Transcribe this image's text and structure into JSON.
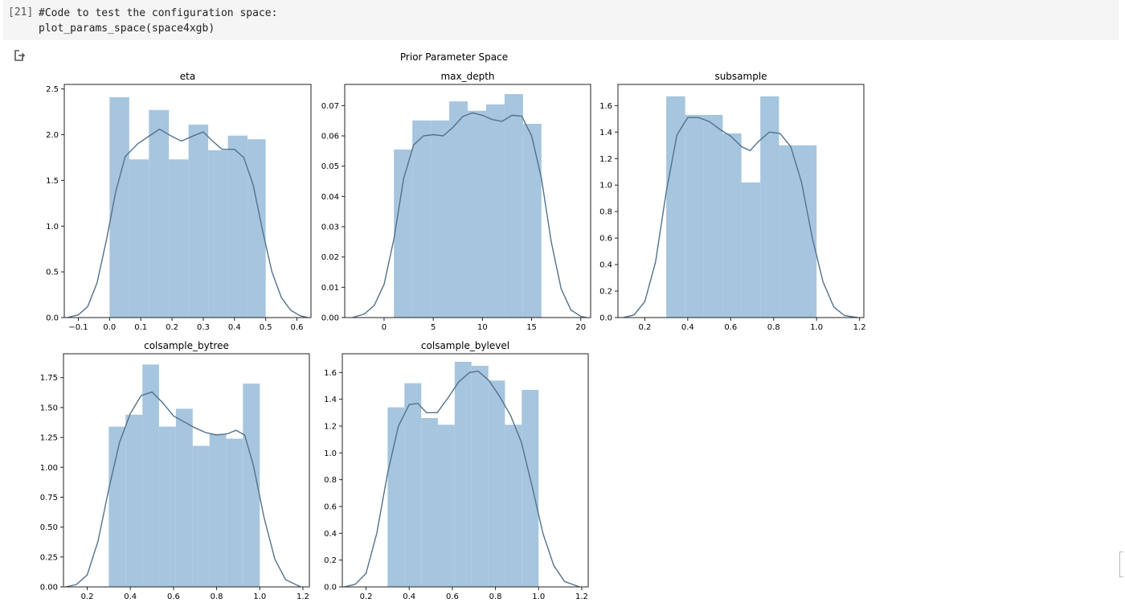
{
  "cell": {
    "execution_count": "[21]",
    "code_lines": [
      "#Code to test the configuration space:",
      "plot_params_space(space4xgb)"
    ]
  },
  "output": {
    "icon": "output-redirect-icon",
    "suptitle": "Prior Parameter Space"
  },
  "colors": {
    "bar": "#a6c5df",
    "kde": "#52728c",
    "axis": "#222222"
  },
  "chart_data": [
    {
      "type": "bar",
      "title": "eta",
      "xlim": [
        -0.145,
        0.645
      ],
      "ylim": [
        0,
        2.55
      ],
      "xticks": [
        -0.1,
        0,
        0.1,
        0.2,
        0.3,
        0.4,
        0.5,
        0.6
      ],
      "xtick_labels": [
        "−0.1",
        "0.0",
        "0.1",
        "0.2",
        "0.3",
        "0.4",
        "0.5",
        "0.6"
      ],
      "yticks": [
        0,
        0.5,
        1,
        1.5,
        2,
        2.5
      ],
      "ytick_labels": [
        "0.0",
        "0.5",
        "1.0",
        "1.5",
        "2.0",
        "2.5"
      ],
      "bins": [
        {
          "x0": 0.0,
          "x1": 0.063,
          "y": 2.41
        },
        {
          "x0": 0.063,
          "x1": 0.126,
          "y": 1.73
        },
        {
          "x0": 0.126,
          "x1": 0.19,
          "y": 2.27
        },
        {
          "x0": 0.19,
          "x1": 0.253,
          "y": 1.73
        },
        {
          "x0": 0.253,
          "x1": 0.316,
          "y": 2.11
        },
        {
          "x0": 0.316,
          "x1": 0.379,
          "y": 1.83
        },
        {
          "x0": 0.379,
          "x1": 0.442,
          "y": 1.99
        },
        {
          "x0": 0.442,
          "x1": 0.5,
          "y": 1.95
        }
      ],
      "kde": [
        [
          -0.135,
          0.0
        ],
        [
          -0.1,
          0.03
        ],
        [
          -0.07,
          0.12
        ],
        [
          -0.04,
          0.38
        ],
        [
          -0.01,
          0.85
        ],
        [
          0.02,
          1.38
        ],
        [
          0.05,
          1.76
        ],
        [
          0.09,
          1.9
        ],
        [
          0.12,
          1.97
        ],
        [
          0.16,
          2.06
        ],
        [
          0.2,
          1.98
        ],
        [
          0.23,
          1.93
        ],
        [
          0.27,
          1.99
        ],
        [
          0.3,
          2.03
        ],
        [
          0.33,
          1.93
        ],
        [
          0.36,
          1.84
        ],
        [
          0.4,
          1.84
        ],
        [
          0.43,
          1.75
        ],
        [
          0.46,
          1.45
        ],
        [
          0.49,
          0.95
        ],
        [
          0.52,
          0.5
        ],
        [
          0.55,
          0.22
        ],
        [
          0.58,
          0.08
        ],
        [
          0.61,
          0.02
        ],
        [
          0.635,
          0.0
        ]
      ]
    },
    {
      "type": "bar",
      "title": "max_depth",
      "xlim": [
        -4.0,
        21.0
      ],
      "ylim": [
        0,
        0.077
      ],
      "xticks": [
        0,
        5,
        10,
        15,
        20
      ],
      "xtick_labels": [
        "0",
        "5",
        "10",
        "15",
        "20"
      ],
      "yticks": [
        0,
        0.01,
        0.02,
        0.03,
        0.04,
        0.05,
        0.06,
        0.07
      ],
      "ytick_labels": [
        "0.00",
        "0.01",
        "0.02",
        "0.03",
        "0.04",
        "0.05",
        "0.06",
        "0.07"
      ],
      "bins": [
        {
          "x0": 1.0,
          "x1": 2.875,
          "y": 0.0555
        },
        {
          "x0": 2.875,
          "x1": 4.75,
          "y": 0.0651
        },
        {
          "x0": 4.75,
          "x1": 6.625,
          "y": 0.0651
        },
        {
          "x0": 6.625,
          "x1": 8.5,
          "y": 0.0714
        },
        {
          "x0": 8.5,
          "x1": 10.375,
          "y": 0.0683
        },
        {
          "x0": 10.375,
          "x1": 12.25,
          "y": 0.0704
        },
        {
          "x0": 12.25,
          "x1": 14.125,
          "y": 0.0738
        },
        {
          "x0": 14.125,
          "x1": 16.0,
          "y": 0.064
        }
      ],
      "kde": [
        [
          -3.2,
          0.0
        ],
        [
          -2.0,
          0.0012
        ],
        [
          -1.0,
          0.004
        ],
        [
          0.0,
          0.011
        ],
        [
          1.0,
          0.026
        ],
        [
          2.0,
          0.046
        ],
        [
          3.0,
          0.057
        ],
        [
          4.0,
          0.06
        ],
        [
          5.0,
          0.0604
        ],
        [
          6.0,
          0.06
        ],
        [
          7.0,
          0.0628
        ],
        [
          8.0,
          0.0664
        ],
        [
          9.0,
          0.0676
        ],
        [
          10.0,
          0.0668
        ],
        [
          11.0,
          0.0654
        ],
        [
          12.0,
          0.0648
        ],
        [
          13.0,
          0.0668
        ],
        [
          14.0,
          0.0665
        ],
        [
          15.0,
          0.06
        ],
        [
          16.0,
          0.046
        ],
        [
          17.0,
          0.025
        ],
        [
          18.0,
          0.0095
        ],
        [
          19.0,
          0.0025
        ],
        [
          20.0,
          0.0004
        ],
        [
          20.6,
          0.0
        ]
      ]
    },
    {
      "type": "bar",
      "title": "subsample",
      "xlim": [
        0.075,
        1.22
      ],
      "ylim": [
        0,
        1.76
      ],
      "xticks": [
        0.2,
        0.4,
        0.6,
        0.8,
        1.0,
        1.2
      ],
      "xtick_labels": [
        "0.2",
        "0.4",
        "0.6",
        "0.8",
        "1.0",
        "1.2"
      ],
      "yticks": [
        0,
        0.2,
        0.4,
        0.6,
        0.8,
        1.0,
        1.2,
        1.4,
        1.6
      ],
      "ytick_labels": [
        "0.0",
        "0.2",
        "0.4",
        "0.6",
        "0.8",
        "1.0",
        "1.2",
        "1.4",
        "1.6"
      ],
      "bins": [
        {
          "x0": 0.3,
          "x1": 0.388,
          "y": 1.67
        },
        {
          "x0": 0.388,
          "x1": 0.475,
          "y": 1.53
        },
        {
          "x0": 0.475,
          "x1": 0.563,
          "y": 1.53
        },
        {
          "x0": 0.563,
          "x1": 0.65,
          "y": 1.39
        },
        {
          "x0": 0.65,
          "x1": 0.738,
          "y": 1.02
        },
        {
          "x0": 0.738,
          "x1": 0.825,
          "y": 1.67
        },
        {
          "x0": 0.825,
          "x1": 0.913,
          "y": 1.3
        },
        {
          "x0": 0.913,
          "x1": 1.0,
          "y": 1.3
        }
      ],
      "kde": [
        [
          0.1,
          0.0
        ],
        [
          0.15,
          0.02
        ],
        [
          0.2,
          0.12
        ],
        [
          0.25,
          0.42
        ],
        [
          0.3,
          0.95
        ],
        [
          0.35,
          1.38
        ],
        [
          0.4,
          1.51
        ],
        [
          0.45,
          1.51
        ],
        [
          0.5,
          1.48
        ],
        [
          0.55,
          1.42
        ],
        [
          0.6,
          1.37
        ],
        [
          0.65,
          1.29
        ],
        [
          0.69,
          1.26
        ],
        [
          0.73,
          1.33
        ],
        [
          0.78,
          1.4
        ],
        [
          0.83,
          1.39
        ],
        [
          0.88,
          1.29
        ],
        [
          0.93,
          1.02
        ],
        [
          0.98,
          0.6
        ],
        [
          1.03,
          0.27
        ],
        [
          1.08,
          0.08
        ],
        [
          1.13,
          0.015
        ],
        [
          1.19,
          0.0
        ]
      ]
    },
    {
      "type": "bar",
      "title": "colsample_bytree",
      "xlim": [
        0.09,
        1.23
      ],
      "ylim": [
        0,
        1.95
      ],
      "xticks": [
        0.2,
        0.4,
        0.6,
        0.8,
        1.0,
        1.2
      ],
      "xtick_labels": [
        "0.2",
        "0.4",
        "0.6",
        "0.8",
        "1.0",
        "1.2"
      ],
      "yticks": [
        0,
        0.25,
        0.5,
        0.75,
        1.0,
        1.25,
        1.5,
        1.75
      ],
      "ytick_labels": [
        "0.00",
        "0.25",
        "0.50",
        "0.75",
        "1.00",
        "1.25",
        "1.50",
        "1.75"
      ],
      "bins": [
        {
          "x0": 0.3,
          "x1": 0.378,
          "y": 1.34
        },
        {
          "x0": 0.378,
          "x1": 0.456,
          "y": 1.44
        },
        {
          "x0": 0.456,
          "x1": 0.533,
          "y": 1.86
        },
        {
          "x0": 0.533,
          "x1": 0.611,
          "y": 1.34
        },
        {
          "x0": 0.611,
          "x1": 0.689,
          "y": 1.49
        },
        {
          "x0": 0.689,
          "x1": 0.767,
          "y": 1.18
        },
        {
          "x0": 0.767,
          "x1": 0.844,
          "y": 1.28
        },
        {
          "x0": 0.844,
          "x1": 0.922,
          "y": 1.24
        },
        {
          "x0": 0.922,
          "x1": 1.0,
          "y": 1.7
        }
      ],
      "kde": [
        [
          0.1,
          0.0
        ],
        [
          0.15,
          0.02
        ],
        [
          0.2,
          0.1
        ],
        [
          0.25,
          0.38
        ],
        [
          0.3,
          0.82
        ],
        [
          0.35,
          1.21
        ],
        [
          0.4,
          1.45
        ],
        [
          0.45,
          1.6
        ],
        [
          0.5,
          1.63
        ],
        [
          0.55,
          1.54
        ],
        [
          0.6,
          1.43
        ],
        [
          0.65,
          1.38
        ],
        [
          0.7,
          1.33
        ],
        [
          0.75,
          1.29
        ],
        [
          0.8,
          1.27
        ],
        [
          0.85,
          1.28
        ],
        [
          0.89,
          1.31
        ],
        [
          0.93,
          1.27
        ],
        [
          0.97,
          1.02
        ],
        [
          1.02,
          0.58
        ],
        [
          1.07,
          0.23
        ],
        [
          1.12,
          0.06
        ],
        [
          1.19,
          0.0
        ]
      ]
    },
    {
      "type": "bar",
      "title": "colsample_bylevel",
      "xlim": [
        0.09,
        1.23
      ],
      "ylim": [
        0,
        1.74
      ],
      "xticks": [
        0.2,
        0.4,
        0.6,
        0.8,
        1.0,
        1.2
      ],
      "xtick_labels": [
        "0.2",
        "0.4",
        "0.6",
        "0.8",
        "1.0",
        "1.2"
      ],
      "yticks": [
        0,
        0.2,
        0.4,
        0.6,
        0.8,
        1.0,
        1.2,
        1.4,
        1.6
      ],
      "ytick_labels": [
        "0.0",
        "0.2",
        "0.4",
        "0.6",
        "0.8",
        "1.0",
        "1.2",
        "1.4",
        "1.6"
      ],
      "bins": [
        {
          "x0": 0.3,
          "x1": 0.378,
          "y": 1.34
        },
        {
          "x0": 0.378,
          "x1": 0.456,
          "y": 1.52
        },
        {
          "x0": 0.456,
          "x1": 0.533,
          "y": 1.26
        },
        {
          "x0": 0.533,
          "x1": 0.611,
          "y": 1.21
        },
        {
          "x0": 0.611,
          "x1": 0.689,
          "y": 1.68
        },
        {
          "x0": 0.689,
          "x1": 0.767,
          "y": 1.65
        },
        {
          "x0": 0.767,
          "x1": 0.844,
          "y": 1.54
        },
        {
          "x0": 0.844,
          "x1": 0.922,
          "y": 1.21
        },
        {
          "x0": 0.922,
          "x1": 1.0,
          "y": 1.47
        }
      ],
      "kde": [
        [
          0.1,
          0.0
        ],
        [
          0.15,
          0.02
        ],
        [
          0.2,
          0.1
        ],
        [
          0.25,
          0.4
        ],
        [
          0.3,
          0.85
        ],
        [
          0.35,
          1.2
        ],
        [
          0.4,
          1.36
        ],
        [
          0.44,
          1.37
        ],
        [
          0.48,
          1.3
        ],
        [
          0.53,
          1.3
        ],
        [
          0.58,
          1.41
        ],
        [
          0.63,
          1.53
        ],
        [
          0.68,
          1.6
        ],
        [
          0.72,
          1.61
        ],
        [
          0.77,
          1.54
        ],
        [
          0.82,
          1.42
        ],
        [
          0.87,
          1.28
        ],
        [
          0.92,
          1.08
        ],
        [
          0.97,
          0.75
        ],
        [
          1.02,
          0.4
        ],
        [
          1.07,
          0.16
        ],
        [
          1.12,
          0.04
        ],
        [
          1.19,
          0.0
        ]
      ]
    }
  ]
}
